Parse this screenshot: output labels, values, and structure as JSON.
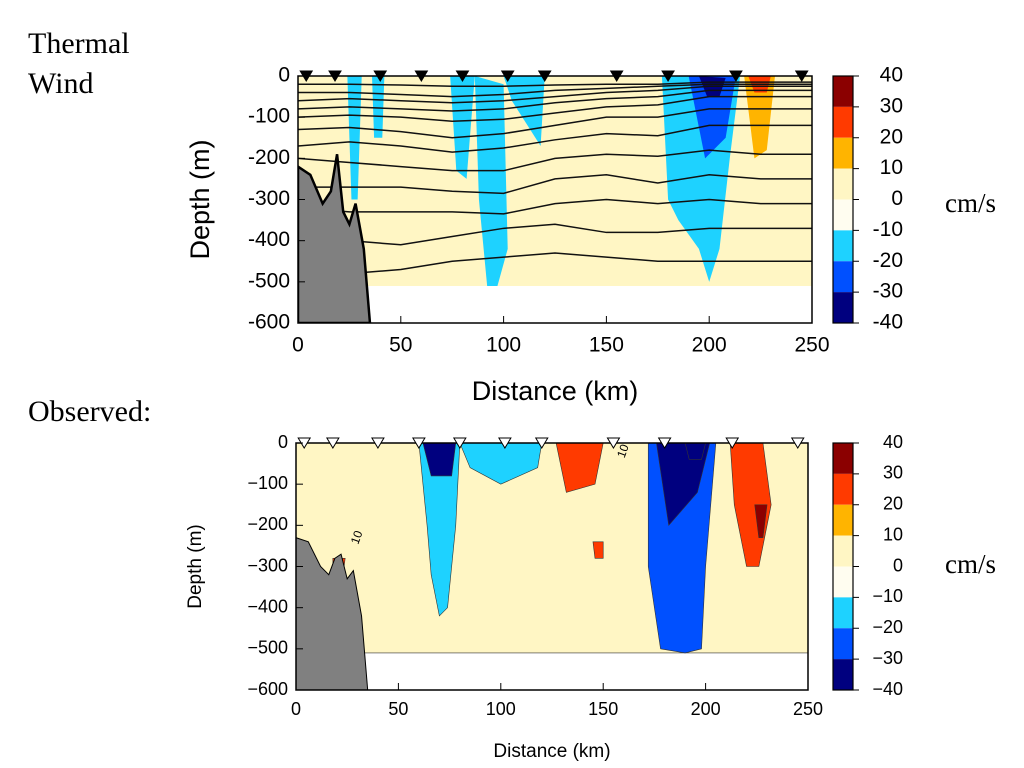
{
  "chart_data": [
    {
      "type": "contour",
      "label": "Thermal Wind",
      "xlabel": "Distance (km)",
      "ylabel": "Depth (m)",
      "xlim": [
        0,
        250
      ],
      "ylim": [
        -600,
        0
      ],
      "xticks": [
        0,
        50,
        100,
        150,
        200,
        250
      ],
      "yticks": [
        0,
        -100,
        -200,
        -300,
        -400,
        -500,
        -600
      ],
      "clim": [
        -40,
        40
      ],
      "cticks": [
        40,
        30,
        20,
        10,
        0,
        -10,
        -20,
        -30,
        -40
      ],
      "ccolors": [
        "#8b0000",
        "#ff3a00",
        "#ffb400",
        "#fff6c4",
        "#fffdf0",
        "#1ed2ff",
        "#0050ff",
        "#00007f"
      ],
      "cunit": "cm/s",
      "station_style": "filled",
      "stations": [
        4,
        18,
        40,
        60,
        80,
        102,
        120,
        155,
        180,
        213,
        245
      ],
      "bathymetry": {
        "x": [
          0,
          6,
          12,
          16,
          19,
          22,
          25,
          28,
          32,
          35
        ],
        "depth": [
          -220,
          -240,
          -310,
          -280,
          -190,
          -330,
          -360,
          -310,
          -420,
          -600
        ]
      },
      "regions": [
        {
          "value": 5,
          "x": [
            0,
            250,
            250,
            0
          ],
          "depth": [
            0,
            0,
            -510,
            -510
          ]
        },
        {
          "value": -15,
          "x": [
            24,
            31,
            29,
            26
          ],
          "depth": [
            0,
            0,
            -300,
            -300
          ]
        },
        {
          "value": -15,
          "x": [
            36,
            42,
            41,
            37
          ],
          "depth": [
            0,
            0,
            -150,
            -150
          ]
        },
        {
          "value": -15,
          "x": [
            74,
            86,
            82,
            77
          ],
          "depth": [
            0,
            0,
            -250,
            -230
          ]
        },
        {
          "value": -15,
          "x": [
            86,
            100,
            102,
            97,
            92,
            88
          ],
          "depth": [
            0,
            -20,
            -420,
            -510,
            -510,
            -300
          ]
        },
        {
          "value": -15,
          "x": [
            100,
            120,
            118,
            104
          ],
          "depth": [
            0,
            0,
            -170,
            -60
          ]
        },
        {
          "value": -15,
          "x": [
            177,
            215,
            210,
            205,
            200,
            195,
            185,
            180
          ],
          "depth": [
            0,
            0,
            -200,
            -420,
            -500,
            -420,
            -350,
            -300
          ]
        },
        {
          "value": -25,
          "x": [
            190,
            213,
            208,
            198
          ],
          "depth": [
            0,
            0,
            -150,
            -200
          ]
        },
        {
          "value": -35,
          "x": [
            195,
            208,
            205,
            199
          ],
          "depth": [
            0,
            -5,
            -50,
            -50
          ]
        },
        {
          "value": 15,
          "x": [
            217,
            232,
            228,
            222
          ],
          "depth": [
            0,
            0,
            -180,
            -200
          ]
        },
        {
          "value": 25,
          "x": [
            219,
            230,
            228,
            222
          ],
          "depth": [
            0,
            0,
            -40,
            -40
          ]
        }
      ],
      "isolines_x": [
        0,
        25,
        50,
        75,
        100,
        125,
        150,
        175,
        200,
        225,
        250
      ],
      "isolines": [
        [
          -20,
          -20,
          -22,
          -25,
          -25,
          -22,
          -20,
          -20,
          -15,
          -15,
          -15
        ],
        [
          -40,
          -40,
          -45,
          -50,
          -45,
          -35,
          -30,
          -25,
          -20,
          -20,
          -20
        ],
        [
          -60,
          -55,
          -60,
          -65,
          -60,
          -50,
          -40,
          -35,
          -25,
          -25,
          -25
        ],
        [
          -80,
          -75,
          -80,
          -85,
          -80,
          -65,
          -55,
          -50,
          -35,
          -35,
          -35
        ],
        [
          -100,
          -95,
          -100,
          -110,
          -105,
          -90,
          -75,
          -70,
          -50,
          -50,
          -50
        ],
        [
          -130,
          -125,
          -135,
          -150,
          -140,
          -120,
          -100,
          -100,
          -80,
          -80,
          -80
        ],
        [
          -170,
          -160,
          -170,
          -185,
          -175,
          -155,
          -140,
          -145,
          -120,
          -120,
          -120
        ],
        [
          -200,
          -210,
          -220,
          -230,
          -230,
          -200,
          -190,
          -195,
          -180,
          -190,
          -190
        ],
        [
          -270,
          -270,
          -270,
          -280,
          -285,
          -250,
          -240,
          -260,
          -240,
          -250,
          -250
        ],
        [
          -320,
          -330,
          -330,
          -330,
          -335,
          -310,
          -300,
          -310,
          -300,
          -310,
          -310
        ],
        [
          -380,
          -400,
          -410,
          -390,
          -370,
          -360,
          -380,
          -380,
          -370,
          -370,
          -370
        ],
        [
          -470,
          -480,
          -470,
          -450,
          -440,
          -430,
          -440,
          -450,
          -450,
          -450,
          -450
        ]
      ]
    },
    {
      "type": "contour",
      "label": "Observed:",
      "xlabel": "Distance (km)",
      "ylabel": "Depth (m)",
      "xlim": [
        0,
        250
      ],
      "ylim": [
        -600,
        0
      ],
      "xticks": [
        0,
        50,
        100,
        150,
        200,
        250
      ],
      "yticks": [
        0,
        {
          "value": -100,
          "label": "−100"
        },
        {
          "value": -200,
          "label": "−200"
        },
        {
          "value": -300,
          "label": "−300"
        },
        {
          "value": -400,
          "label": "−400"
        },
        {
          "value": -500,
          "label": "−500"
        },
        {
          "value": -600,
          "label": "−600"
        }
      ],
      "clim": [
        -40,
        40
      ],
      "cticks": [
        40,
        30,
        20,
        10,
        0,
        {
          "value": -10,
          "label": "−10"
        },
        {
          "value": -20,
          "label": "−20"
        },
        {
          "value": -30,
          "label": "−30"
        },
        {
          "value": -40,
          "label": "−40"
        }
      ],
      "ccolors": [
        "#8b0000",
        "#ff3a00",
        "#ffb400",
        "#fff6c4",
        "#fffdf0",
        "#1ed2ff",
        "#0050ff",
        "#00007f"
      ],
      "cunit": "cm/s",
      "station_style": "open",
      "stations": [
        4,
        18,
        40,
        60,
        80,
        102,
        120,
        155,
        180,
        213,
        245
      ],
      "bathymetry": {
        "x": [
          0,
          6,
          12,
          16,
          19,
          22,
          25,
          28,
          32,
          35
        ],
        "depth": [
          -230,
          -240,
          -300,
          -320,
          -280,
          -270,
          -330,
          -310,
          -420,
          -600
        ]
      },
      "regions": [
        {
          "value": 5,
          "x": [
            0,
            250,
            250,
            0
          ],
          "depth": [
            0,
            0,
            -510,
            -510
          ]
        },
        {
          "value": -20,
          "x": [
            60,
            80,
            78,
            74,
            70,
            66,
            64
          ],
          "depth": [
            0,
            0,
            -200,
            -400,
            -420,
            -320,
            -200
          ]
        },
        {
          "value": -35,
          "x": [
            62,
            78,
            76,
            66
          ],
          "depth": [
            0,
            0,
            -80,
            -80
          ]
        },
        {
          "value": -15,
          "x": [
            80,
            120,
            118,
            100,
            85
          ],
          "depth": [
            0,
            0,
            -60,
            -100,
            -60
          ]
        },
        {
          "value": 20,
          "x": [
            127,
            150,
            146,
            132
          ],
          "depth": [
            0,
            0,
            -100,
            -120
          ]
        },
        {
          "value": 20,
          "x": [
            145,
            150,
            150,
            146
          ],
          "depth": [
            -240,
            -240,
            -280,
            -280
          ]
        },
        {
          "value": -25,
          "x": [
            172,
            205,
            200,
            198,
            190,
            178,
            172
          ],
          "depth": [
            0,
            0,
            -300,
            -500,
            -510,
            -500,
            -300
          ]
        },
        {
          "value": -35,
          "x": [
            176,
            202,
            196,
            182
          ],
          "depth": [
            0,
            0,
            -120,
            -200
          ]
        },
        {
          "value": -38,
          "x": [
            190,
            200,
            198,
            192
          ],
          "depth": [
            0,
            0,
            -40,
            -40
          ]
        },
        {
          "value": 20,
          "x": [
            212,
            228,
            232,
            226,
            220,
            214
          ],
          "depth": [
            0,
            0,
            -150,
            -300,
            -300,
            -150
          ]
        },
        {
          "value": 30,
          "x": [
            224,
            230,
            228,
            226
          ],
          "depth": [
            -150,
            -150,
            -230,
            -230
          ]
        },
        {
          "value": 20,
          "x": [
            18,
            24,
            22,
            18
          ],
          "depth": [
            -280,
            -280,
            -360,
            -340
          ]
        }
      ],
      "annotations": [
        {
          "text": "10",
          "x": 30,
          "depth": -230
        },
        {
          "text": "10",
          "x": 160,
          "depth": -20
        }
      ]
    }
  ]
}
